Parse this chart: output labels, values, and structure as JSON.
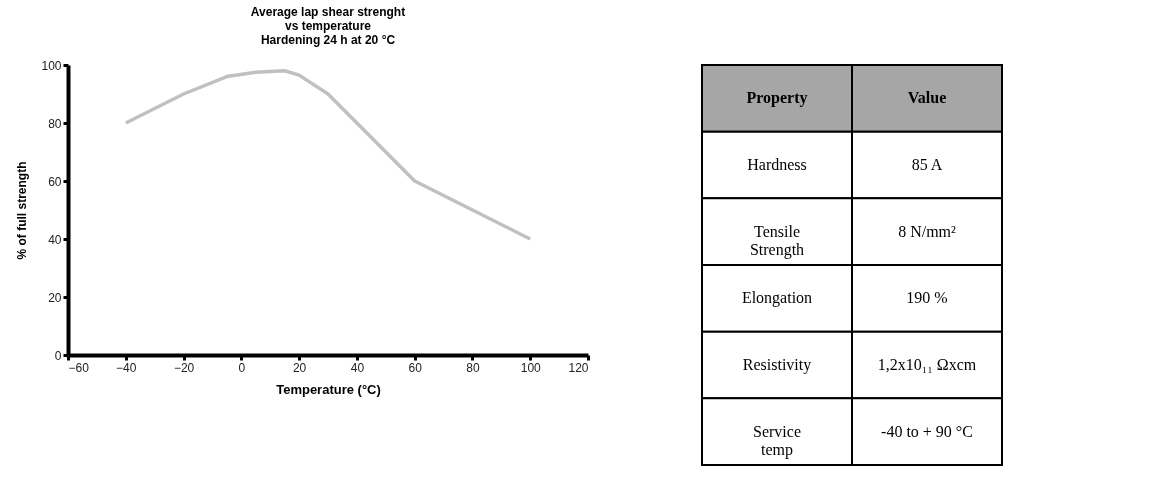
{
  "chart_data": [
    {
      "type": "line",
      "title": "Average lap shear strenght\nvs temperature\nHardening 24 h at 20 °C",
      "xlabel": "Temperature (°C)",
      "ylabel": "% of full strength",
      "x": [
        -40,
        -20,
        -5,
        5,
        15,
        20,
        30,
        40,
        50,
        60,
        80,
        100
      ],
      "series": [
        {
          "color": "#c0c0c0",
          "values": [
            80,
            90,
            96,
            97.5,
            98,
            96.5,
            90,
            80,
            70,
            60,
            50,
            40
          ]
        }
      ],
      "xlim": [
        -60,
        120
      ],
      "xticks": [
        -60,
        -40,
        -20,
        0,
        20,
        40,
        60,
        80,
        100,
        120
      ],
      "ylim": [
        0,
        100
      ],
      "yticks": [
        0,
        20,
        40,
        60,
        80,
        100
      ],
      "grid": false,
      "marker": "none",
      "line_style": "solid"
    },
    {
      "type": "other",
      "annotations": [
        "Property",
        "Value",
        "Hardness",
        "85 A",
        "Tensile\nStrength",
        "8 N/mm²",
        "Elongation",
        "190 %",
        "Resistivity",
        "1,2x10₁₁ Ωxcm",
        "Service\ntemp",
        "-40 to + 90 °C"
      ]
    }
  ]
}
